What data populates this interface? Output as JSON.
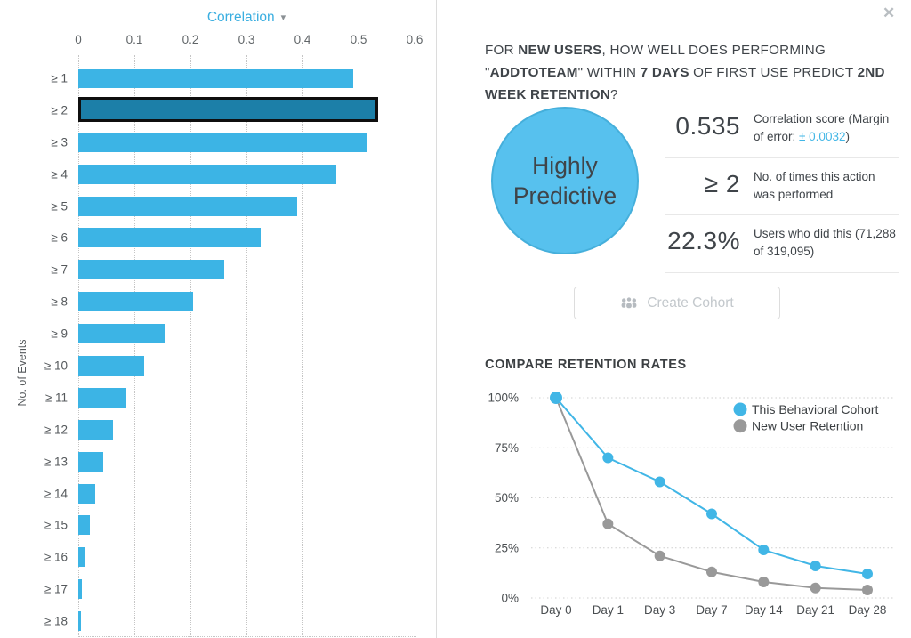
{
  "window": {
    "close_icon": "✕"
  },
  "colors": {
    "accent_blue": "#41B6E6",
    "bar_blue": "#3CB4E5",
    "bar_selected": "#1C7FA8",
    "circle_fill": "#57C1EE",
    "gray_series": "#999999",
    "text_dark": "#3F4449"
  },
  "left_panel": {
    "dropdown_label": "Correlation",
    "dropdown_caret": "▾",
    "y_axis_label": "No. of Events"
  },
  "right_panel": {
    "question_segments": [
      {
        "text": "FOR ",
        "bold": false
      },
      {
        "text": "NEW USERS",
        "bold": true
      },
      {
        "text": ", HOW WELL DOES PERFORMING \"",
        "bold": false
      },
      {
        "text": "ADDTOTEAM",
        "bold": true
      },
      {
        "text": "\" WITHIN ",
        "bold": false
      },
      {
        "text": "7 DAYS",
        "bold": true
      },
      {
        "text": " OF FIRST USE PREDICT ",
        "bold": false
      },
      {
        "text": "2ND WEEK RETENTION",
        "bold": true
      },
      {
        "text": "?",
        "bold": false
      }
    ],
    "verdict": "Highly Predictive",
    "stats": [
      {
        "value": "0.535",
        "label_parts": [
          {
            "text": "Correlation score (Margin of error: ",
            "blue": false
          },
          {
            "text": "± 0.0032",
            "blue": true
          },
          {
            "text": ")",
            "blue": false
          }
        ]
      },
      {
        "value": "≥ 2",
        "label_parts": [
          {
            "text": "No. of times this action was performed",
            "blue": false
          }
        ]
      },
      {
        "value": "22.3%",
        "label_parts": [
          {
            "text": "Users who did this (71,288 of 319,095)",
            "blue": false
          }
        ]
      }
    ],
    "create_cohort_button": {
      "label": "Create Cohort",
      "icon": "people-group-icon"
    },
    "compare_title": "COMPARE RETENTION RATES"
  },
  "chart_data": [
    {
      "type": "bar",
      "orientation": "horizontal",
      "title": "Correlation",
      "xlabel": "Correlation",
      "ylabel": "No. of Events",
      "xlim": [
        0,
        0.6
      ],
      "xticks": [
        "0",
        "0.1",
        "0.2",
        "0.3",
        "0.4",
        "0.5",
        "0.6"
      ],
      "grid": "vertical-dotted",
      "categories": [
        "≥ 1",
        "≥ 2",
        "≥ 3",
        "≥ 4",
        "≥ 5",
        "≥ 6",
        "≥ 7",
        "≥ 8",
        "≥ 9",
        "≥ 10",
        "≥ 11",
        "≥ 12",
        "≥ 13",
        "≥ 14",
        "≥ 15",
        "≥ 16",
        "≥ 17",
        "≥ 18"
      ],
      "values": [
        0.49,
        0.535,
        0.515,
        0.46,
        0.39,
        0.325,
        0.26,
        0.205,
        0.155,
        0.117,
        0.085,
        0.062,
        0.045,
        0.03,
        0.021,
        0.012,
        0.006,
        0.004
      ],
      "highlight_index": 1,
      "bar_color": "#3CB4E5",
      "highlight_color": "#1C7FA8"
    },
    {
      "type": "line",
      "title": "COMPARE RETENTION RATES",
      "categories": [
        "Day 0",
        "Day 1",
        "Day 3",
        "Day 7",
        "Day 14",
        "Day 21",
        "Day 28"
      ],
      "ylim": [
        0,
        100
      ],
      "yticks": [
        100,
        75,
        50,
        25,
        0
      ],
      "ytick_suffix": "%",
      "grid": "horizontal-dotted",
      "legend_position": "top-right",
      "series": [
        {
          "name": "This Behavioral Cohort",
          "color": "#41B6E6",
          "values": [
            100,
            70,
            58,
            42,
            24,
            16,
            12
          ]
        },
        {
          "name": "New User Retention",
          "color": "#999999",
          "values": [
            100,
            37,
            21,
            13,
            8,
            5,
            4
          ]
        }
      ]
    }
  ]
}
